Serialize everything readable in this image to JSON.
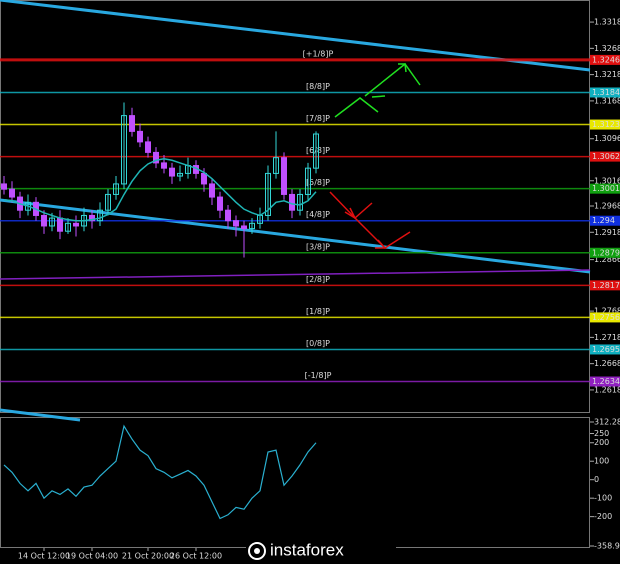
{
  "chart_data": {
    "type": "candlestick",
    "up_color": "#33d6d6",
    "down_color": "#c050ff",
    "ma_color": "#1fb5b5",
    "ylim": [
      1.2576,
      1.336
    ],
    "yticks": [
      1.3318,
      1.3268,
      1.3218,
      1.3168,
      1.3096,
      1.3016,
      1.2968,
      1.2918,
      1.2866,
      1.2768,
      1.2718,
      1.2668,
      1.2618
    ],
    "categories": [
      null,
      null,
      null,
      null,
      null,
      "14 Oct 12:00",
      null,
      null,
      null,
      null,
      null,
      "19 Oct 04:00",
      null,
      null,
      null,
      null,
      null,
      null,
      "21 Oct 20:00",
      null,
      null,
      null,
      null,
      null,
      "26 Oct 12:00",
      null,
      null,
      null,
      null,
      null,
      null,
      null,
      null,
      null,
      null,
      null,
      null,
      null,
      null,
      null
    ],
    "open": [
      1.301,
      1.3,
      1.2985,
      1.296,
      1.2975,
      1.295,
      1.293,
      1.2945,
      1.292,
      1.2935,
      1.293,
      1.295,
      1.294,
      1.296,
      1.299,
      1.301,
      1.314,
      1.311,
      1.309,
      1.307,
      1.305,
      1.304,
      1.3025,
      1.303,
      1.3045,
      1.303,
      1.301,
      1.2985,
      1.296,
      1.294,
      1.293,
      1.2925,
      1.2935,
      1.295,
      1.303,
      1.306,
      1.299,
      1.296,
      1.299,
      1.304
    ],
    "high": [
      1.3025,
      1.3015,
      1.2995,
      1.299,
      1.2985,
      1.296,
      1.2955,
      1.296,
      1.2945,
      1.295,
      1.2965,
      1.296,
      1.2975,
      1.3,
      1.3025,
      1.3165,
      1.3155,
      1.3125,
      1.31,
      1.308,
      1.3065,
      1.305,
      1.3045,
      1.306,
      1.3055,
      1.304,
      1.302,
      1.2995,
      1.297,
      1.295,
      1.294,
      1.2945,
      1.2965,
      1.3045,
      1.311,
      1.307,
      1.3,
      1.3,
      1.305,
      1.311
    ],
    "low": [
      1.299,
      1.2975,
      1.2945,
      1.295,
      1.294,
      1.2915,
      1.292,
      1.2905,
      1.2915,
      1.291,
      1.292,
      1.2925,
      1.293,
      1.295,
      1.298,
      1.3,
      1.31,
      1.308,
      1.306,
      1.304,
      1.303,
      1.301,
      1.3015,
      1.302,
      1.302,
      1.2995,
      1.297,
      1.2945,
      1.2925,
      1.291,
      1.287,
      1.2915,
      1.2925,
      1.294,
      1.302,
      1.298,
      1.2945,
      1.295,
      1.298,
      1.303
    ],
    "close": [
      1.3,
      1.2985,
      1.296,
      1.2975,
      1.295,
      1.293,
      1.2945,
      1.292,
      1.2935,
      1.293,
      1.295,
      1.294,
      1.296,
      1.299,
      1.301,
      1.314,
      1.311,
      1.309,
      1.307,
      1.305,
      1.304,
      1.3025,
      1.303,
      1.3045,
      1.303,
      1.301,
      1.2985,
      1.296,
      1.294,
      1.293,
      1.2925,
      1.2935,
      1.295,
      1.303,
      1.306,
      1.299,
      1.296,
      1.299,
      1.304,
      1.3105
    ],
    "ma": [
      1.298,
      1.2978,
      1.2972,
      1.2968,
      1.2962,
      1.2955,
      1.295,
      1.2945,
      1.2942,
      1.294,
      1.294,
      1.2942,
      1.2945,
      1.2952,
      1.2962,
      1.299,
      1.3015,
      1.3035,
      1.3048,
      1.3055,
      1.3058,
      1.3055,
      1.305,
      1.3045,
      1.304,
      1.3032,
      1.302,
      1.3005,
      1.299,
      1.2975,
      1.2962,
      1.2955,
      1.295,
      1.296,
      1.2975,
      1.2978,
      1.2972,
      1.297,
      1.2978,
      1.2995
    ],
    "levels": [
      {
        "name": "[+1/8]P",
        "value": 1.3246,
        "color": "#e01010"
      },
      {
        "name": "[8/8]P",
        "value": 1.3184,
        "color": "#10b0c0"
      },
      {
        "name": "[7/8]P",
        "value": 1.3123,
        "color": "#e8e800"
      },
      {
        "name": "[6/8]P",
        "value": 1.3062,
        "color": "#e01010"
      },
      {
        "name": "[5/8]P",
        "value": 1.3001,
        "color": "#10a010"
      },
      {
        "name": "[4/8]P",
        "value": 1.294,
        "color": "#1030e0"
      },
      {
        "name": "[3/8]P",
        "value": 1.2879,
        "color": "#10a010"
      },
      {
        "name": "[2/8]P",
        "value": 1.2817,
        "color": "#e01010"
      },
      {
        "name": "[1/8]P",
        "value": 1.2756,
        "color": "#e8e800"
      },
      {
        "name": "[0/8]P",
        "value": 1.2695,
        "color": "#10b0c0"
      },
      {
        "name": "[-1/8]P",
        "value": 1.2634,
        "color": "#9020c0"
      }
    ],
    "indicator": {
      "color": "#2ab0d0",
      "ylim": [
        -358.914,
        312.2872
      ],
      "yticks": [
        {
          "value": 312.2872,
          "label": "312.2872"
        },
        250,
        200,
        100,
        0,
        -100,
        -200,
        {
          "value": -358.914,
          "label": "-358.914"
        }
      ],
      "values": [
        80,
        40,
        -20,
        -60,
        -20,
        -100,
        -60,
        -80,
        -50,
        -90,
        -40,
        -30,
        20,
        60,
        100,
        290,
        220,
        160,
        130,
        60,
        40,
        10,
        30,
        50,
        20,
        -30,
        -120,
        -210,
        -190,
        -150,
        -160,
        -100,
        -60,
        150,
        160,
        -30,
        20,
        80,
        150,
        200
      ]
    },
    "watermark": "instaforex"
  }
}
